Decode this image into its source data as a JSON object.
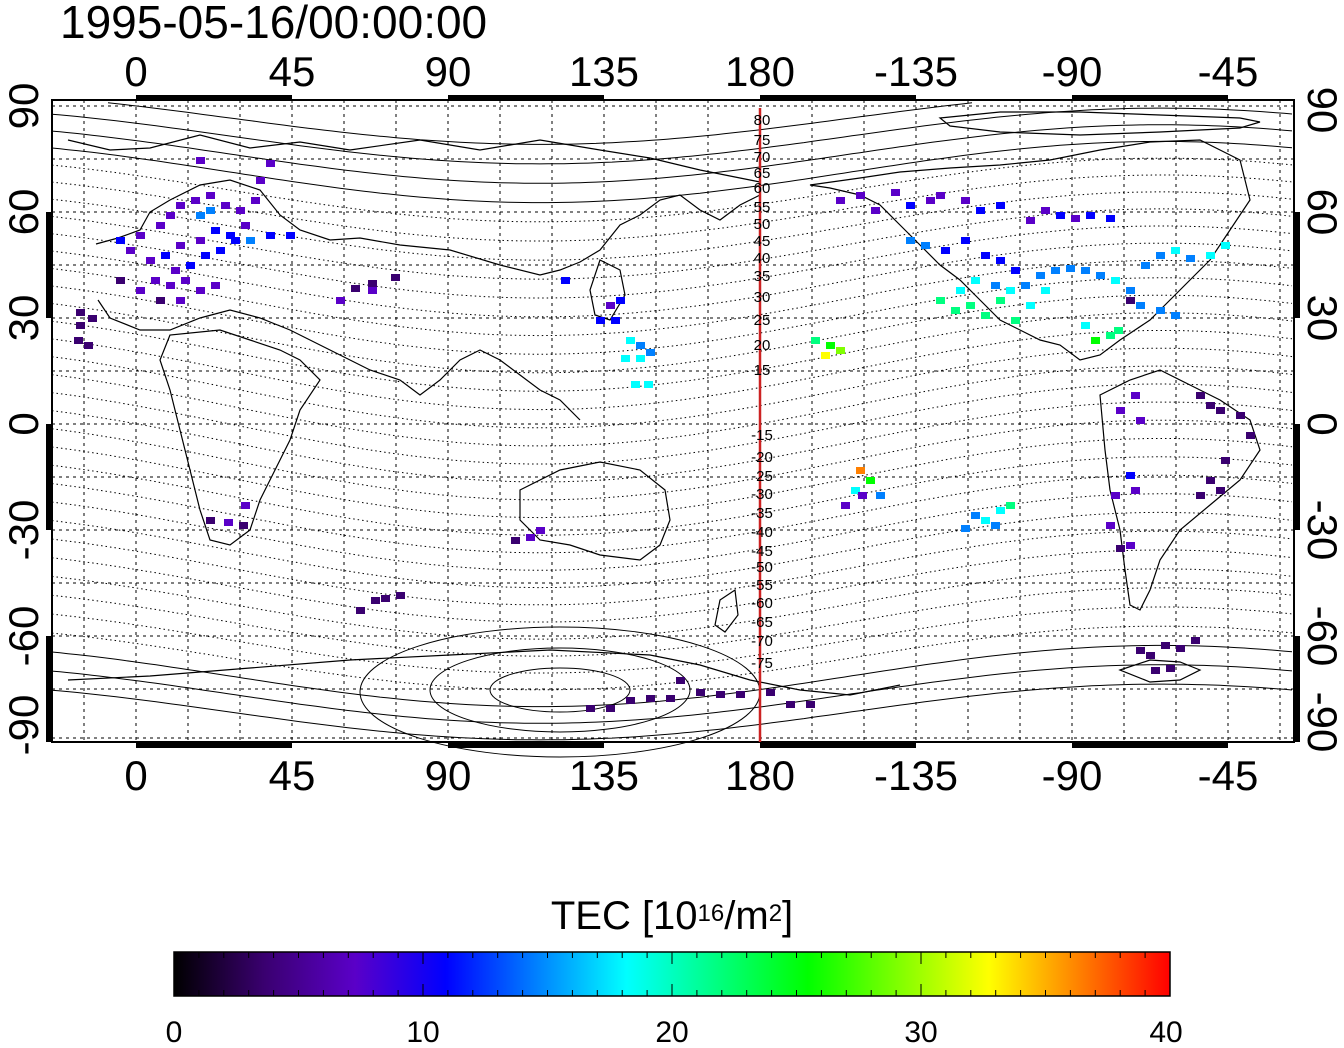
{
  "title": "1995-05-16/00:00:00",
  "map": {
    "x_ticks_top": [
      "0",
      "45",
      "90",
      "135",
      "180",
      "-135",
      "-90",
      "-45"
    ],
    "x_ticks_bottom": [
      "0",
      "45",
      "90",
      "135",
      "180",
      "-135",
      "-90",
      "-45"
    ],
    "y_ticks_left": [
      "90",
      "60",
      "30",
      "0",
      "-30",
      "-60",
      "-90"
    ],
    "y_ticks_right": [
      "90",
      "60",
      "30",
      "0",
      "-30",
      "-60",
      "-90"
    ],
    "meridian_line_color": "#cc2222",
    "meridian_labels": [
      "80",
      "75",
      "70",
      "65",
      "60",
      "55",
      "50",
      "45",
      "40",
      "35",
      "30",
      "25",
      "20",
      "15",
      "-15",
      "-20",
      "-25",
      "-30",
      "-35",
      "-40",
      "-45",
      "-50",
      "-55",
      "-60",
      "-65",
      "-70",
      "-75"
    ]
  },
  "colorbar": {
    "title_prefix": "TEC  [10",
    "title_exp": "16",
    "title_mid": "/m",
    "title_exp2": "2",
    "title_suffix": "]",
    "tick_labels": [
      "0",
      "10",
      "20",
      "30",
      "40"
    ],
    "range": [
      0,
      40
    ],
    "colormap": [
      "#000000",
      "#3a0070",
      "#5a00c8",
      "#0000ff",
      "#0080ff",
      "#00ffff",
      "#00ff80",
      "#00ff00",
      "#80ff00",
      "#ffff00",
      "#ff8000",
      "#ff0000"
    ]
  }
}
